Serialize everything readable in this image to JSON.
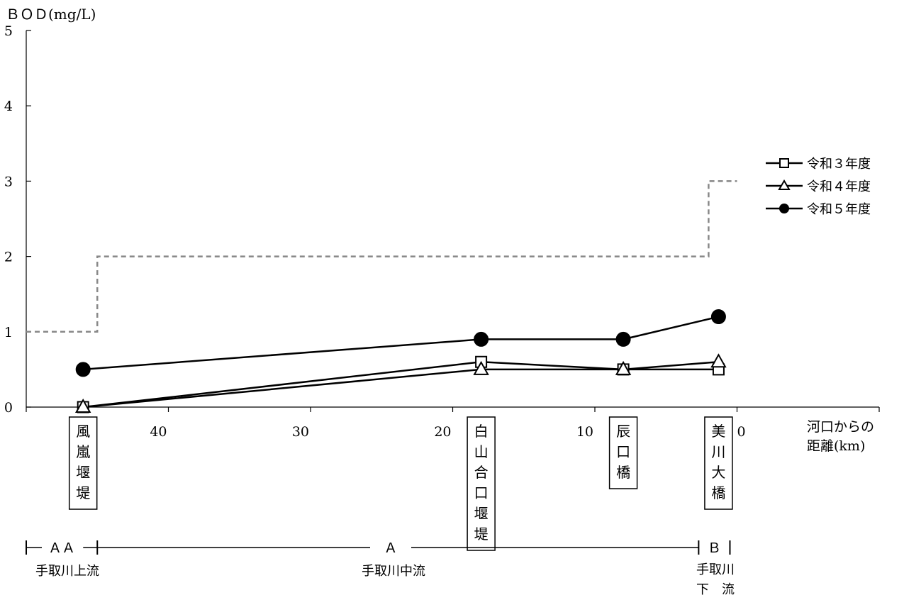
{
  "chart_data": {
    "type": "line",
    "title": "ＢＯＤ(mg/L)",
    "xlabel": [
      "河口からの",
      "距離(km)"
    ],
    "xlim": [
      50,
      -10
    ],
    "ylim": [
      0,
      5
    ],
    "x_ticks": [
      40,
      30,
      20,
      10,
      0
    ],
    "y_ticks": [
      0,
      1,
      2,
      3,
      4,
      5
    ],
    "stations": [
      {
        "name": "風嵐堰堤",
        "km": 46,
        "chars": [
          "風",
          "嵐",
          "堰",
          "堤"
        ]
      },
      {
        "name": "白山合口堰堤",
        "km": 18,
        "chars": [
          "白",
          "山",
          "合",
          "口",
          "堰",
          "堤"
        ]
      },
      {
        "name": "辰口橋",
        "km": 8,
        "chars": [
          "辰",
          "口",
          "橋"
        ]
      },
      {
        "name": "美川大橋",
        "km": 1.3,
        "chars": [
          "美",
          "川",
          "大",
          "橋"
        ]
      }
    ],
    "series": [
      {
        "name": "令和３年度",
        "marker": "square",
        "x": [
          46,
          18,
          8,
          1.3
        ],
        "y": [
          0.0,
          0.6,
          0.5,
          0.5
        ]
      },
      {
        "name": "令和４年度",
        "marker": "triangle",
        "x": [
          46,
          18,
          8,
          1.3
        ],
        "y": [
          0.0,
          0.5,
          0.5,
          0.6
        ]
      },
      {
        "name": "令和５年度",
        "marker": "circle",
        "x": [
          46,
          18,
          8,
          1.3
        ],
        "y": [
          0.5,
          0.9,
          0.9,
          1.2
        ]
      }
    ],
    "standard": {
      "style": "dashed",
      "color": "#888888",
      "x": [
        50,
        45,
        45,
        2,
        2,
        0
      ],
      "y": [
        1,
        1,
        2,
        2,
        3,
        3
      ]
    },
    "zones": [
      {
        "label": "ＡＡ",
        "from_km": 50,
        "to_km": 45,
        "reach": "手取川上流"
      },
      {
        "label": "Ａ",
        "from_km": 45,
        "to_km": 2.7,
        "reach": "手取川中流"
      },
      {
        "label": "Ｂ",
        "from_km": 2.7,
        "to_km": 0.5,
        "reach": [
          "手取川",
          "下　流"
        ]
      }
    ],
    "legend": "right"
  }
}
